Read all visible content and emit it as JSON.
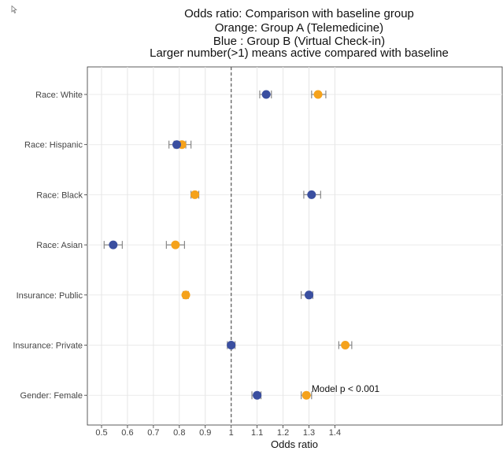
{
  "chart_data": {
    "type": "scatter",
    "title_lines": [
      "Odds ratio: Comparison with baseline group",
      "Orange: Group A (Telemedicine)",
      "Blue  : Group B (Virtual Check-in)",
      "Larger number(>1) means active compared with baseline"
    ],
    "xlabel": "Odds ratio",
    "ylabel": "",
    "xlim": [
      0.45,
      1.52
    ],
    "x_gridlines": [
      0.5,
      0.6,
      0.7,
      0.8,
      0.9,
      1,
      1.1,
      1.2,
      1.3,
      1.4
    ],
    "x_ticks": [
      {
        "value": 0.5,
        "label": "0.5"
      },
      {
        "value": 0.6,
        "label": "0.6"
      },
      {
        "value": 0.7,
        "label": "0.7"
      },
      {
        "value": 0.8,
        "label": "0.8"
      },
      {
        "value": 0.9,
        "label": "0.9"
      },
      {
        "value": 1,
        "label": "1"
      },
      {
        "value": 1.1,
        "label": "1.1"
      },
      {
        "value": 1.2,
        "label": "1.2"
      },
      {
        "value": 1.3,
        "label": "1.3"
      },
      {
        "value": 1.4,
        "label": "1.4"
      }
    ],
    "reference_line": 1,
    "categories": [
      "Race: White",
      "Race: Hispanic",
      "Race: Black",
      "Race: Asian",
      "Insurance: Public",
      "Insurance: Private",
      "Gender: Female"
    ],
    "series": [
      {
        "color": "#f5a21b",
        "points": [
          {
            "estimate": 1.335,
            "lower": 1.31,
            "upper": 1.365
          },
          {
            "estimate": 0.81,
            "lower": 0.78,
            "upper": 0.845
          },
          {
            "estimate": 0.86,
            "lower": 0.845,
            "upper": 0.875
          },
          {
            "estimate": 0.785,
            "lower": 0.75,
            "upper": 0.82
          },
          {
            "estimate": 0.825,
            "lower": 0.815,
            "upper": 0.835
          },
          {
            "estimate": 1.44,
            "lower": 1.415,
            "upper": 1.465
          },
          {
            "estimate": 1.29,
            "lower": 1.27,
            "upper": 1.31
          }
        ]
      },
      {
        "color": "#3a4fa0",
        "points": [
          {
            "estimate": 1.135,
            "lower": 1.11,
            "upper": 1.155
          },
          {
            "estimate": 0.79,
            "lower": 0.76,
            "upper": 0.825
          },
          {
            "estimate": 1.31,
            "lower": 1.28,
            "upper": 1.345
          },
          {
            "estimate": 0.545,
            "lower": 0.51,
            "upper": 0.58
          },
          {
            "estimate": 1.3,
            "lower": 1.27,
            "upper": 1.315
          },
          {
            "estimate": 1.0,
            "lower": 0.985,
            "upper": 1.015
          },
          {
            "estimate": 1.1,
            "lower": 1.08,
            "upper": 1.115
          }
        ]
      }
    ],
    "annotations": [
      {
        "text": "Model p < 0.001",
        "x": 1.31,
        "category": "Gender: Female"
      }
    ],
    "grid": true,
    "legend": "none",
    "error_bar_color": "#888888",
    "reference_line_color": "#555555"
  }
}
